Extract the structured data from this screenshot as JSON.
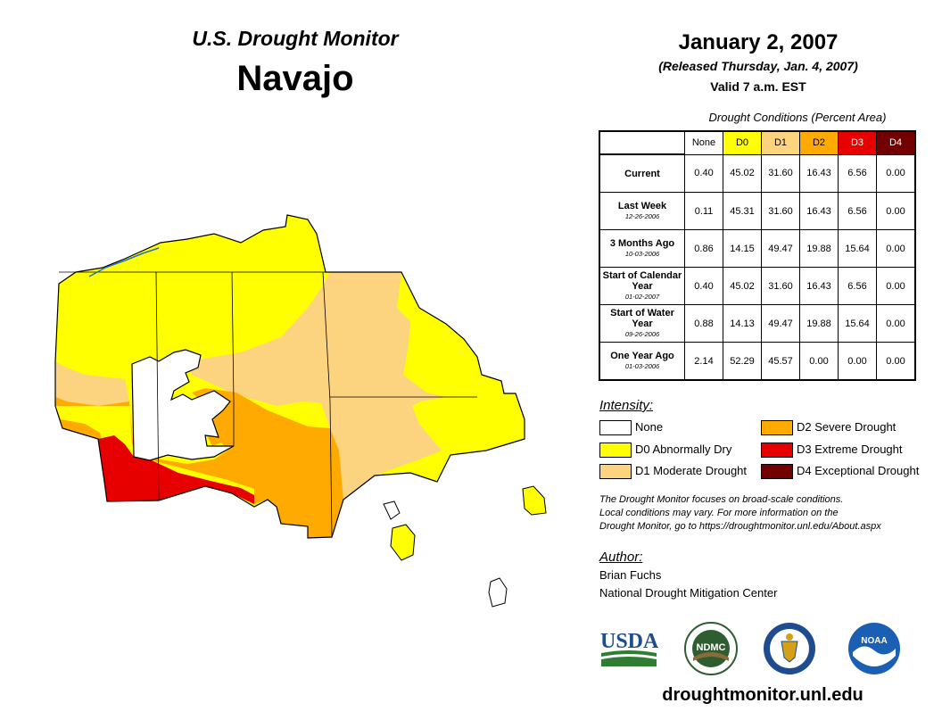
{
  "header": {
    "brand": "U.S. Drought Monitor",
    "region": "Navajo",
    "date": "January 2, 2007",
    "released": "(Released Thursday, Jan. 4, 2007)",
    "valid": "Valid 7 a.m. EST"
  },
  "table": {
    "caption": "Drought Conditions (Percent Area)",
    "columns": [
      "None",
      "D0",
      "D1",
      "D2",
      "D3",
      "D4"
    ],
    "rows": [
      {
        "label": "Current",
        "sub": "",
        "values": [
          "0.40",
          "45.02",
          "31.60",
          "16.43",
          "6.56",
          "0.00"
        ]
      },
      {
        "label": "Last Week",
        "sub": "12-26-2006",
        "values": [
          "0.11",
          "45.31",
          "31.60",
          "16.43",
          "6.56",
          "0.00"
        ]
      },
      {
        "label": "3 Months Ago",
        "sub": "10-03-2006",
        "values": [
          "0.86",
          "14.15",
          "49.47",
          "19.88",
          "15.64",
          "0.00"
        ]
      },
      {
        "label": "Start of Calendar Year",
        "sub": "01-02-2007",
        "values": [
          "0.40",
          "45.02",
          "31.60",
          "16.43",
          "6.56",
          "0.00"
        ]
      },
      {
        "label": "Start of Water Year",
        "sub": "09-26-2006",
        "values": [
          "0.88",
          "14.13",
          "49.47",
          "19.88",
          "15.64",
          "0.00"
        ]
      },
      {
        "label": "One Year Ago",
        "sub": "01-03-2006",
        "values": [
          "2.14",
          "52.29",
          "45.57",
          "0.00",
          "0.00",
          "0.00"
        ]
      }
    ]
  },
  "legend": {
    "title": "Intensity:",
    "items": [
      {
        "label": "None",
        "color": "#ffffff"
      },
      {
        "label": "D0 Abnormally Dry",
        "color": "#ffff00"
      },
      {
        "label": "D1 Moderate Drought",
        "color": "#fcd37f"
      },
      {
        "label": "D2 Severe Drought",
        "color": "#ffaa00"
      },
      {
        "label": "D3 Extreme Drought",
        "color": "#e60000"
      },
      {
        "label": "D4 Exceptional Drought",
        "color": "#730000"
      }
    ]
  },
  "disclaimer": [
    "The Drought Monitor focuses on broad-scale conditions.",
    "Local conditions may vary. For more information on the",
    "Drought Monitor, go to https://droughtmonitor.unl.edu/About.aspx"
  ],
  "author": {
    "title": "Author:",
    "name": "Brian Fuchs",
    "org": "National Drought Mitigation Center"
  },
  "logos": {
    "usda": "USDA",
    "ndmc": "NDMC",
    "noaa": "NOAA"
  },
  "website": "droughtmonitor.unl.edu",
  "colors": {
    "none": "#ffffff",
    "d0": "#ffff00",
    "d1": "#fcd37f",
    "d2": "#ffaa00",
    "d3": "#e60000",
    "d4": "#730000",
    "usda_blue": "#1f4b8f",
    "usda_green": "#2e7d32",
    "ndmc_green": "#2f5d31",
    "noaa_blue": "#1b5fb5"
  }
}
